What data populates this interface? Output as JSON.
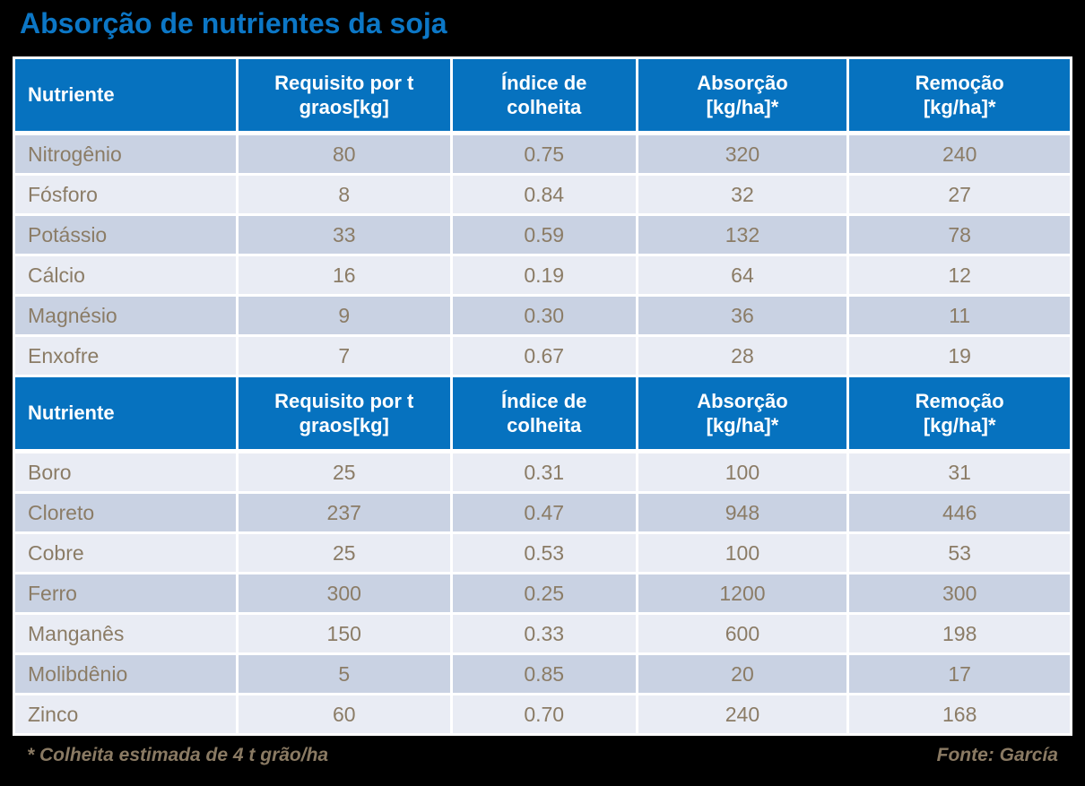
{
  "title": "Absorção de nutrientes da soja",
  "footer": {
    "footnote": "* Colheita estimada de 4 t grão/ha",
    "source": "Fonte: García"
  },
  "colors": {
    "background": "#000000",
    "title": "#0c77c6",
    "header_bg": "#0672bf",
    "header_text": "#ffffff",
    "row_dark": "#c9d2e3",
    "row_light": "#e9ecf4",
    "cell_text": "#8b7c66",
    "footer_text": "#8a7a63",
    "border": "#ffffff"
  },
  "chart_data": {
    "type": "table",
    "title": "Absorção de nutrientes da soja",
    "columns": [
      "Nutriente",
      "Requisito por t\ngraos[kg]",
      "Índice de\ncolheita",
      "Absorção\n[kg/ha]*",
      "Remoção\n[kg/ha]*"
    ],
    "sections": [
      {
        "start_shade": "dark",
        "rows": [
          [
            "Nitrogênio",
            "80",
            "0.75",
            "320",
            "240"
          ],
          [
            "Fósforo",
            "8",
            "0.84",
            "32",
            "27"
          ],
          [
            "Potássio",
            "33",
            "0.59",
            "132",
            "78"
          ],
          [
            "Cálcio",
            "16",
            "0.19",
            "64",
            "12"
          ],
          [
            "Magnésio",
            "9",
            "0.30",
            "36",
            "11"
          ],
          [
            "Enxofre",
            "7",
            "0.67",
            "28",
            "19"
          ]
        ]
      },
      {
        "start_shade": "light",
        "rows": [
          [
            "Boro",
            "25",
            "0.31",
            "100",
            "31"
          ],
          [
            "Cloreto",
            "237",
            "0.47",
            "948",
            "446"
          ],
          [
            "Cobre",
            "25",
            "0.53",
            "100",
            "53"
          ],
          [
            "Ferro",
            "300",
            "0.25",
            "1200",
            "300"
          ],
          [
            "Manganês",
            "150",
            "0.33",
            "600",
            "198"
          ],
          [
            "Molibdênio",
            "5",
            "0.85",
            "20",
            "17"
          ],
          [
            "Zinco",
            "60",
            "0.70",
            "240",
            "168"
          ]
        ]
      }
    ],
    "footnote": "* Colheita estimada de 4 t grão/ha",
    "source": "Fonte: García"
  }
}
